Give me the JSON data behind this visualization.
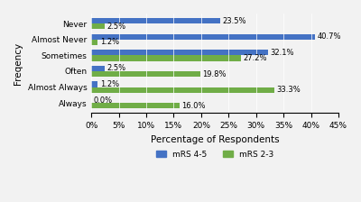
{
  "categories": [
    "Always",
    "Almost Always",
    "Often",
    "Sometimes",
    "Almost Never",
    "Never"
  ],
  "mRS_45": [
    0.0,
    1.2,
    2.5,
    32.1,
    40.7,
    23.5
  ],
  "mRS_23": [
    16.0,
    33.3,
    19.8,
    27.2,
    1.2,
    2.5
  ],
  "color_45": "#4472C4",
  "color_23": "#70AD47",
  "xlabel": "Percentage of Respondents",
  "ylabel": "Freqency",
  "legend_45": "mRS 4-5",
  "legend_23": "mRS 2-3",
  "xlim": [
    0,
    45
  ],
  "xticks": [
    0,
    5,
    10,
    15,
    20,
    25,
    30,
    35,
    40,
    45
  ],
  "xtick_labels": [
    "0%",
    "5%",
    "10%",
    "15%",
    "20%",
    "25%",
    "30%",
    "35%",
    "40%",
    "45%"
  ],
  "bar_height": 0.35,
  "label_fontsize": 6.0,
  "axis_fontsize": 7.5,
  "tick_fontsize": 6.5,
  "legend_fontsize": 6.5,
  "background_color": "#f2f2f2"
}
